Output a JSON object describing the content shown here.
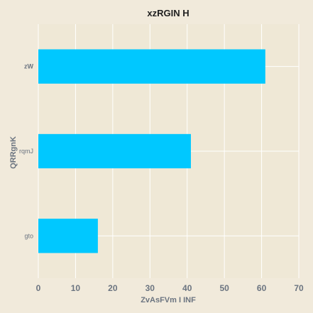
{
  "chart_data": {
    "type": "bar",
    "orientation": "horizontal",
    "title": "xzRGIN H",
    "xlabel": "ZvAsFVm I INF",
    "ylabel": "QRRgnK",
    "categories": [
      "zW",
      "rqmJ",
      "gto"
    ],
    "category_font_weight": [
      "bold",
      "normal",
      "normal"
    ],
    "values": [
      61,
      41,
      16
    ],
    "xlim": [
      0,
      70
    ],
    "xticks": [
      0,
      10,
      20,
      30,
      40,
      50,
      60,
      70
    ],
    "grid": true,
    "colors": {
      "bar": "#00c8ff",
      "plot_background": "#efe8d6",
      "page_background": "#f1eadb",
      "grid": "#ffffff"
    }
  }
}
